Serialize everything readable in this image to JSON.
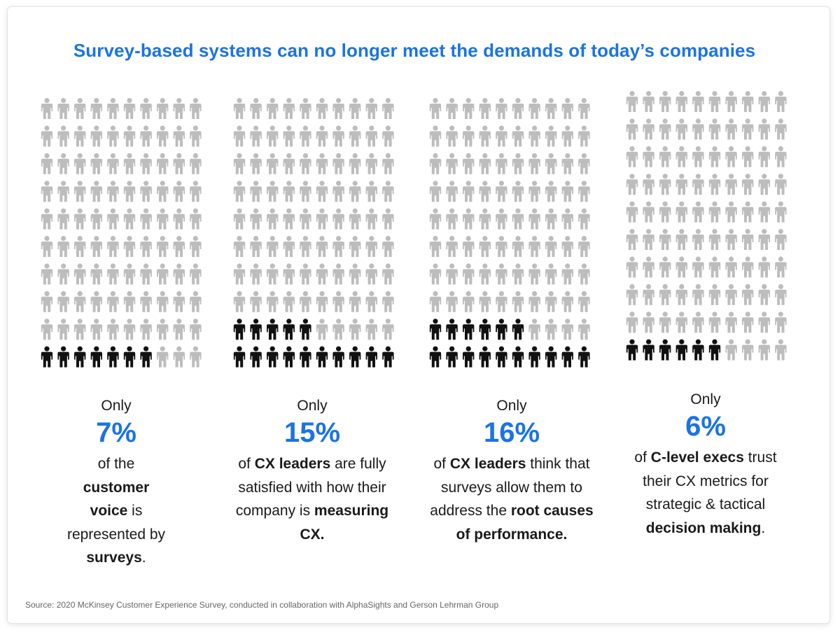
{
  "title": "Survey-based systems can no longer meet the demands of today’s companies",
  "source": "Source: 2020 McKinsey Customer Experience Survey, conducted in collaboration with AlphaSights and Gerson Lehrman Group",
  "colors": {
    "accent": "#1a73e8",
    "highlight_icon": "#111111",
    "base_icon": "#bdbdbd",
    "text": "#1a1a1a"
  },
  "icon": "person-icon",
  "chart_data": [
    {
      "type": "pictogram",
      "total": 100,
      "value": 7,
      "only": "Only",
      "percent": "7%",
      "desc": [
        {
          "t": "of the ",
          "b": false
        },
        {
          "t": "customer voice",
          "b": true
        },
        {
          "t": " is represented by ",
          "b": false
        },
        {
          "t": "surveys",
          "b": true
        },
        {
          "t": ".",
          "b": false
        }
      ]
    },
    {
      "type": "pictogram",
      "total": 100,
      "value": 15,
      "only": "Only",
      "percent": "15%",
      "desc": [
        {
          "t": "of ",
          "b": false
        },
        {
          "t": "CX leaders",
          "b": true
        },
        {
          "t": " are fully satisfied with how their company is ",
          "b": false
        },
        {
          "t": "measuring CX.",
          "b": true
        }
      ]
    },
    {
      "type": "pictogram",
      "total": 100,
      "value": 16,
      "only": "Only",
      "percent": "16%",
      "desc": [
        {
          "t": "of ",
          "b": false
        },
        {
          "t": "CX leaders",
          "b": true
        },
        {
          "t": " think that surveys allow them to address the ",
          "b": false
        },
        {
          "t": "root causes of performance.",
          "b": true
        }
      ]
    },
    {
      "type": "pictogram",
      "total": 100,
      "value": 6,
      "only": "Only",
      "percent": "6%",
      "desc": [
        {
          "t": "of ",
          "b": false
        },
        {
          "t": "C-level execs",
          "b": true
        },
        {
          "t": " trust their CX metrics for strategic & tactical ",
          "b": false
        },
        {
          "t": "decision making",
          "b": true
        },
        {
          "t": ".",
          "b": false
        }
      ]
    }
  ]
}
